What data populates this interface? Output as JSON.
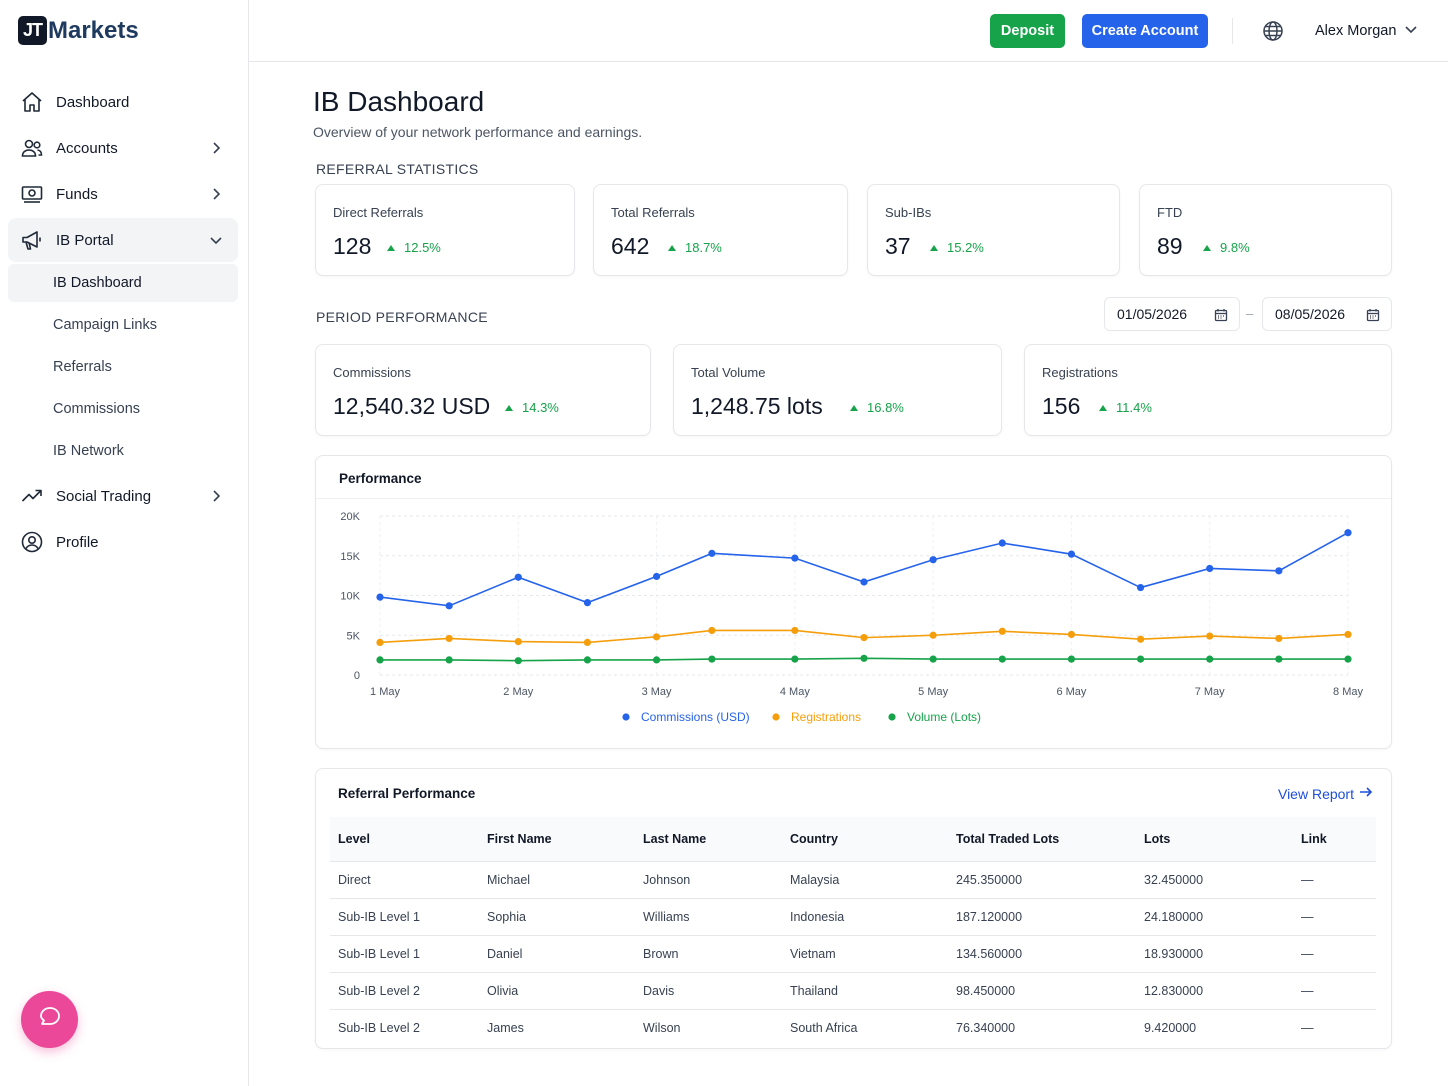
{
  "brand": {
    "logo_mark": "JT",
    "name": "Markets"
  },
  "sidebar": {
    "items": [
      {
        "label": "Dashboard",
        "icon": "home-icon"
      },
      {
        "label": "Accounts",
        "icon": "users-icon"
      },
      {
        "label": "Funds",
        "icon": "cash-icon"
      },
      {
        "label": "IB Portal",
        "icon": "megaphone-icon"
      },
      {
        "label": "Social Trading",
        "icon": "trending-icon"
      },
      {
        "label": "Profile",
        "icon": "user-circle-icon"
      }
    ],
    "ib_subitems": [
      "IB Dashboard",
      "Campaign Links",
      "Referrals",
      "Commissions",
      "IB Network"
    ]
  },
  "topbar": {
    "deposit_label": "Deposit",
    "create_account_label": "Create Account",
    "user_name": "Alex Morgan"
  },
  "page": {
    "title": "IB Dashboard",
    "subtitle": "Overview of your network performance and earnings."
  },
  "referral_stats": {
    "section_label": "REFERRAL STATISTICS",
    "cards": [
      {
        "label": "Direct Referrals",
        "value": "128",
        "delta": "12.5%"
      },
      {
        "label": "Total Referrals",
        "value": "642",
        "delta": "18.7%"
      },
      {
        "label": "Sub-IBs",
        "value": "37",
        "delta": "15.2%"
      },
      {
        "label": "FTD",
        "value": "89",
        "delta": "9.8%"
      }
    ]
  },
  "period": {
    "section_label": "PERIOD PERFORMANCE",
    "date_from": "01/05/2026",
    "date_sep": "–",
    "date_to": "08/05/2026",
    "cards": [
      {
        "label": "Commissions",
        "value": "12,540.32 USD",
        "delta": "14.3%"
      },
      {
        "label": "Total Volume",
        "value": "1,248.75 lots",
        "delta": "16.8%"
      },
      {
        "label": "Registrations",
        "value": "156",
        "delta": "11.4%"
      }
    ]
  },
  "performance_card_title": "Performance",
  "chart_data": {
    "type": "line",
    "title": "Performance",
    "x_ticks": [
      "1 May",
      "2 May",
      "3 May",
      "4 May",
      "5 May",
      "6 May",
      "7 May",
      "8 May"
    ],
    "x": [
      0,
      0.5,
      1,
      1.5,
      2,
      2.4,
      3,
      3.5,
      4,
      4.5,
      5,
      5.5,
      6,
      6.5,
      7
    ],
    "y_ticks": [
      "0",
      "5K",
      "10K",
      "15K",
      "20K"
    ],
    "ylim": [
      0,
      20000
    ],
    "grid": true,
    "legend_position": "bottom",
    "series": [
      {
        "name": "Commissions (USD)",
        "color": "#2563eb",
        "values": [
          9800,
          8700,
          12300,
          9100,
          12400,
          15300,
          14700,
          11700,
          14500,
          16600,
          15200,
          11000,
          13400,
          13100,
          17900
        ]
      },
      {
        "name": "Registrations",
        "color": "#f59e0b",
        "values": [
          4100,
          4600,
          4200,
          4100,
          4800,
          5600,
          5600,
          4700,
          5000,
          5500,
          5100,
          4500,
          4900,
          4600,
          5100
        ]
      },
      {
        "name": "Volume (Lots)",
        "color": "#16a34a",
        "values": [
          1900,
          1900,
          1800,
          1900,
          1900,
          2000,
          2000,
          2100,
          2000,
          2000,
          2000,
          2000,
          2000,
          2000,
          2000
        ]
      }
    ]
  },
  "referral_table": {
    "title": "Referral Performance",
    "view_report_label": "View Report",
    "columns": [
      "Level",
      "First Name",
      "Last Name",
      "Country",
      "Total Traded Lots",
      "Lots",
      "Link"
    ],
    "rows": [
      [
        "Direct",
        "Michael",
        "Johnson",
        "Malaysia",
        "245.350000",
        "32.450000",
        "—"
      ],
      [
        "Sub-IB Level 1",
        "Sophia",
        "Williams",
        "Indonesia",
        "187.120000",
        "24.180000",
        "—"
      ],
      [
        "Sub-IB Level 1",
        "Daniel",
        "Brown",
        "Vietnam",
        "134.560000",
        "18.930000",
        "—"
      ],
      [
        "Sub-IB Level 2",
        "Olivia",
        "Davis",
        "Thailand",
        "98.450000",
        "12.830000",
        "—"
      ],
      [
        "Sub-IB Level 2",
        "James",
        "Wilson",
        "South Africa",
        "76.340000",
        "9.420000",
        "—"
      ]
    ]
  }
}
